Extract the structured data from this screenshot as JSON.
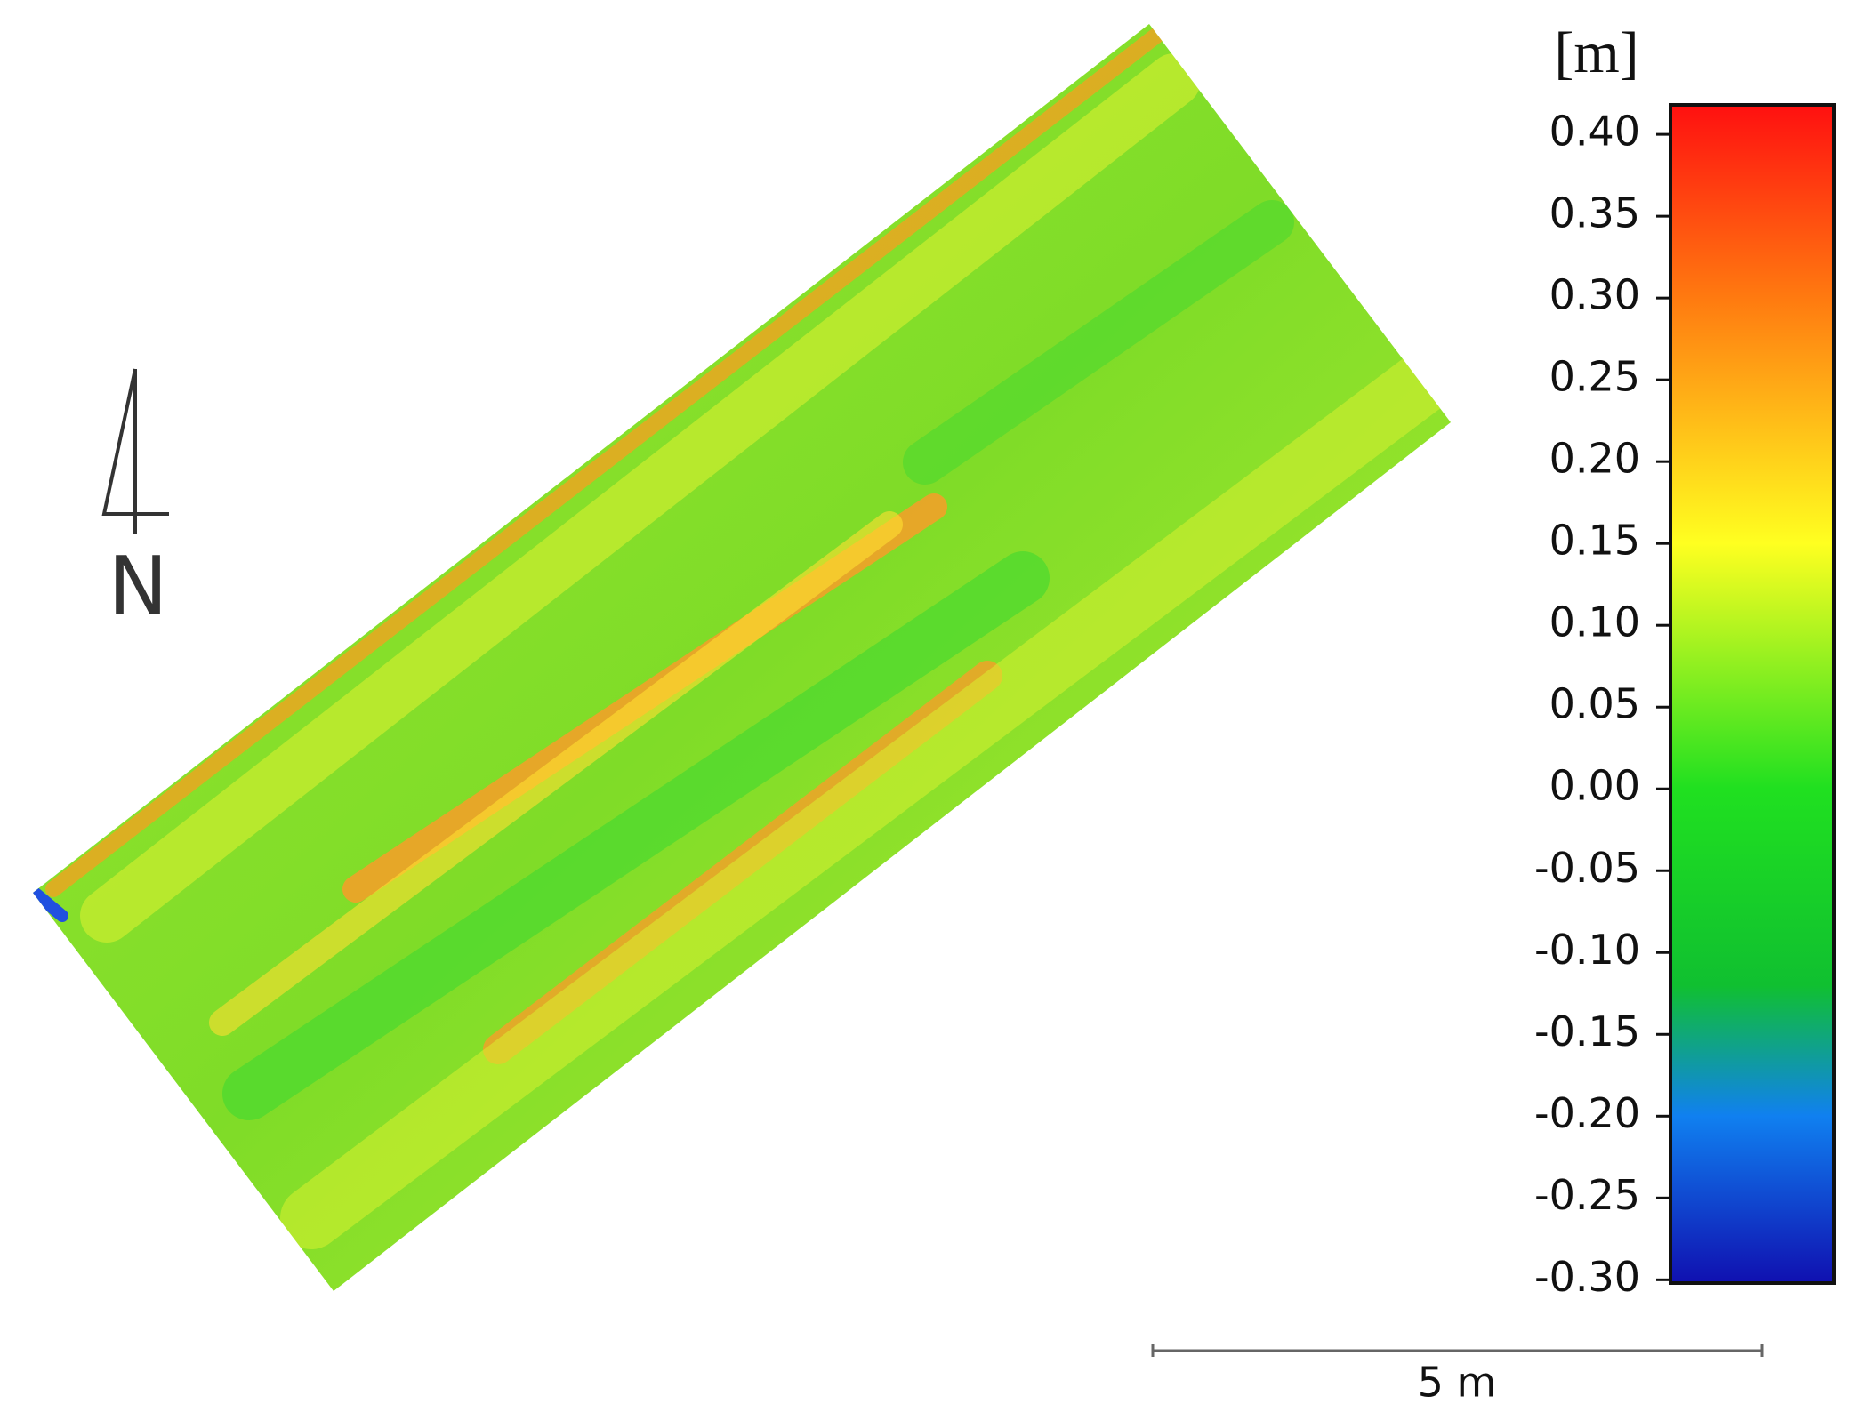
{
  "map": {
    "unit_label": "[m]",
    "north_label": "N",
    "scale_bar_label": "5 m",
    "colorbar": {
      "lim": [
        -0.302,
        0.418
      ],
      "ticks": [
        {
          "value": 0.4,
          "label": "0.40"
        },
        0.35,
        {
          "value": 0.3,
          "label": "0.30"
        },
        0.25,
        {
          "value": 0.2,
          "label": "0.20"
        },
        0.15,
        {
          "value": 0.1,
          "label": "0.10"
        },
        0.05,
        {
          "value": 0,
          "label": "0.00"
        },
        -0.05,
        {
          "value": -0.1,
          "label": "-0.10"
        },
        -0.15,
        {
          "value": -0.2,
          "label": "-0.20"
        },
        -0.25,
        {
          "value": -0.3,
          "label": "-0.30"
        }
      ],
      "colormap": [
        {
          "value": 0.418,
          "color": "#ff1010"
        },
        {
          "value": 0.3,
          "color": "#ff7a10"
        },
        {
          "value": 0.15,
          "color": "#ffff20"
        },
        {
          "value": 0.0,
          "color": "#20e020"
        },
        {
          "value": -0.12,
          "color": "#10c030"
        },
        {
          "value": -0.2,
          "color": "#1080f0"
        },
        {
          "value": -0.302,
          "color": "#1010b0"
        }
      ]
    }
  }
}
